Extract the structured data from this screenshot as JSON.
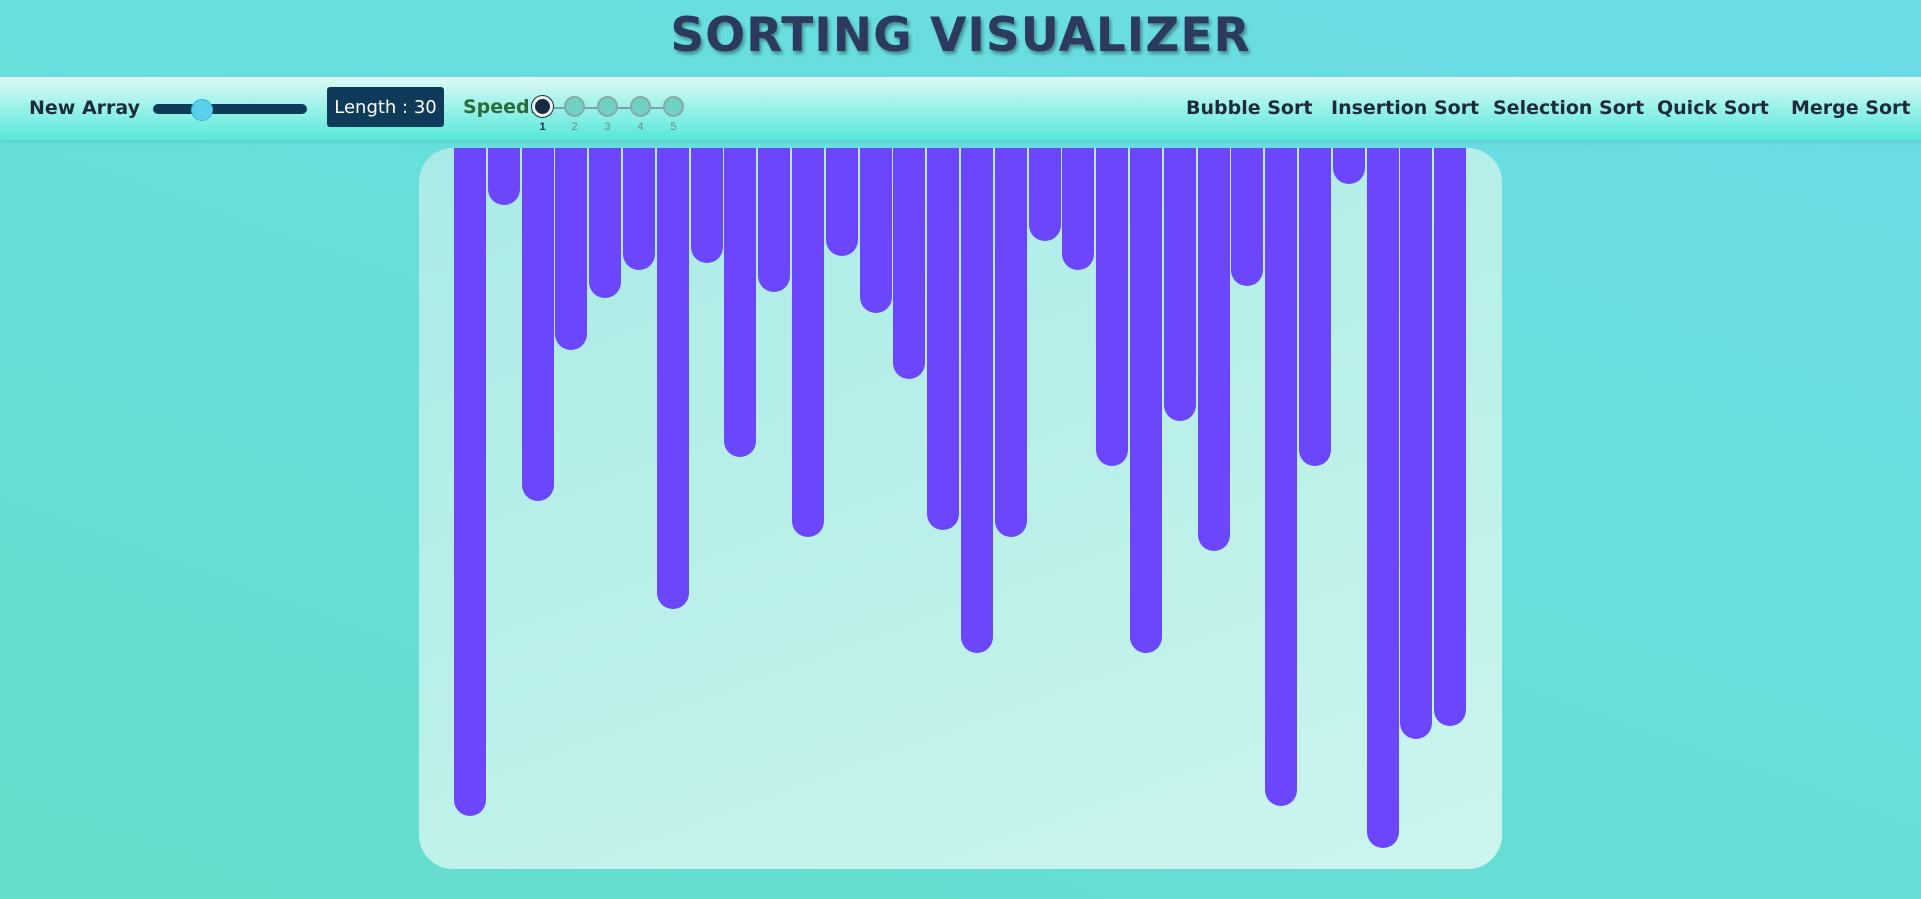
{
  "header": {
    "title": "SORTING VISUALIZER"
  },
  "toolbar": {
    "new_array_label": "New Array",
    "length_label": "Length : 30",
    "length_slider_value": 0.28,
    "speed_label": "Speed:",
    "speeds": [
      "1",
      "2",
      "3",
      "4",
      "5"
    ],
    "selected_speed": "1",
    "algorithms": [
      "Bubble Sort",
      "Insertion Sort",
      "Selection Sort",
      "Quick Sort",
      "Merge Sort"
    ]
  },
  "colors": {
    "bar": "#6b46fc",
    "navbar_dark": "#0f3b5a",
    "title": "#2b3a5e"
  },
  "array": {
    "length": 30,
    "values": [
      668,
      57,
      353,
      202,
      150,
      122,
      461,
      115,
      309,
      144,
      389,
      108,
      165,
      231,
      382,
      505,
      389,
      93,
      122,
      318,
      505,
      273,
      403,
      138,
      658,
      318,
      36,
      700,
      591,
      578
    ]
  }
}
